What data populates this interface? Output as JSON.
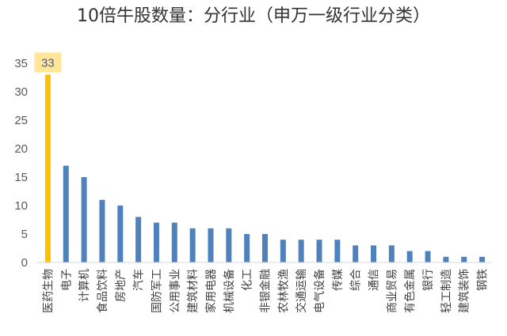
{
  "chart_data": {
    "type": "bar",
    "title": "10倍牛股数量：分行业（申万一级行业分类）",
    "xlabel": "",
    "ylabel": "",
    "ylim": [
      0,
      35
    ],
    "yticks": [
      0,
      5,
      10,
      15,
      20,
      25,
      30,
      35
    ],
    "grid": false,
    "legend": "none",
    "categories": [
      "医药生物",
      "电子",
      "计算机",
      "食品饮料",
      "房地产",
      "汽车",
      "国防军工",
      "公用事业",
      "建筑材料",
      "家用电器",
      "机械设备",
      "化工",
      "非银金融",
      "农林牧渔",
      "交通运输",
      "电气设备",
      "传媒",
      "综合",
      "通信",
      "商业贸易",
      "有色金属",
      "银行",
      "轻工制造",
      "建筑装饰",
      "钢铁"
    ],
    "values": [
      33,
      17,
      15,
      11,
      10,
      8,
      7,
      7,
      6,
      6,
      6,
      5,
      5,
      4,
      4,
      4,
      4,
      3,
      3,
      3,
      2,
      2,
      1,
      1,
      1
    ],
    "highlight": {
      "index": 0,
      "label": "33",
      "color": "#ffc000",
      "label_bg": "#ffe699"
    },
    "bar_color": "#4f81bd",
    "axis_color": "#d9d9d9"
  }
}
